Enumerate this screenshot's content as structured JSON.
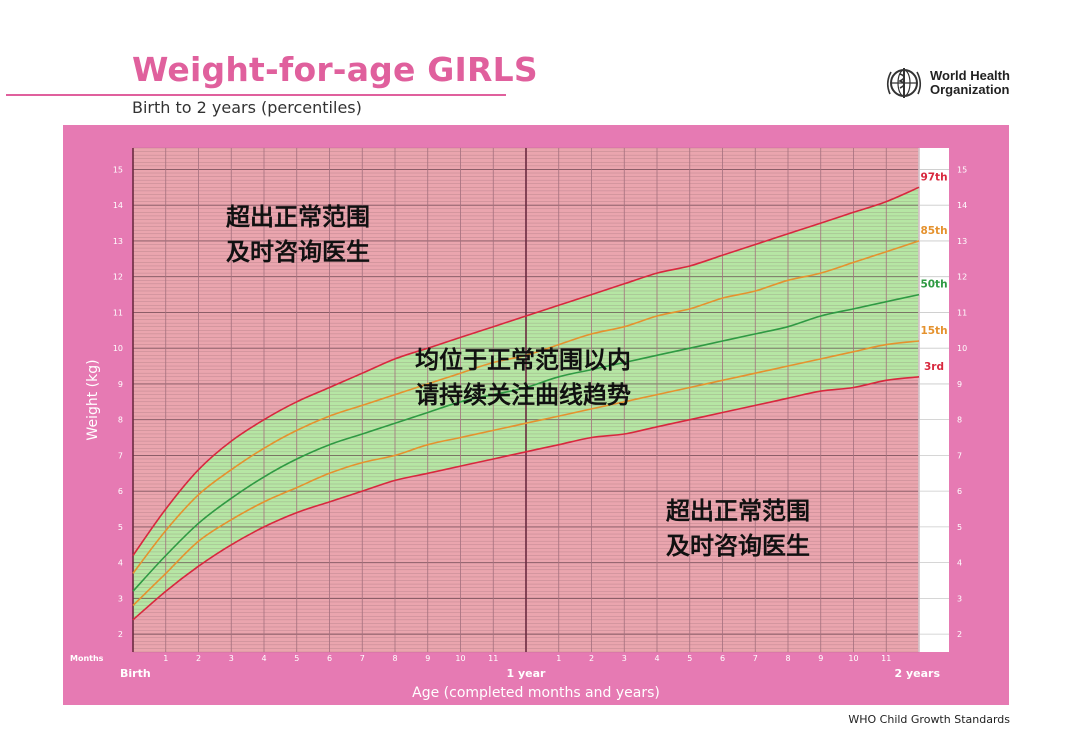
{
  "header": {
    "title": "Weight-for-age GIRLS",
    "subtitle": "Birth to 2 years (percentiles)",
    "org_line1": "World Health",
    "org_line2": "Organization",
    "footer": "WHO Child Growth Standards"
  },
  "overlays": {
    "top_left_line1": "超出正常范围",
    "top_left_line2": "及时咨询医生",
    "middle_line1": "均位于正常范围以内",
    "middle_line2": "请持续关注曲线趋势",
    "bottom_right_line1": "超出正常范围",
    "bottom_right_line2": "及时咨询医生"
  },
  "colors": {
    "frame": "#e67ab3",
    "out_of_range": "#eaa5ae",
    "normal_range": "#b6e6a4",
    "p97": "#d8283e",
    "p85": "#e5922e",
    "p50": "#2f9a43",
    "p15": "#e5922e",
    "p3": "#d8283e",
    "title": "#e0609d"
  },
  "chart_data": {
    "type": "line",
    "title": "Weight-for-age GIRLS",
    "subtitle": "Birth to 2 years (percentiles)",
    "xlabel": "Age (completed months and years)",
    "ylabel": "Weight (kg)",
    "x_axis_prefix": "Months",
    "x_tick_labels": [
      "Birth",
      "1",
      "2",
      "3",
      "4",
      "5",
      "6",
      "7",
      "8",
      "9",
      "10",
      "11",
      "1 year",
      "1",
      "2",
      "3",
      "4",
      "5",
      "6",
      "7",
      "8",
      "9",
      "10",
      "11",
      "2 years"
    ],
    "y_ticks": [
      2,
      3,
      4,
      5,
      6,
      7,
      8,
      9,
      10,
      11,
      12,
      13,
      14,
      15
    ],
    "xlim": [
      0,
      24
    ],
    "ylim": [
      1.5,
      15.6
    ],
    "grid": true,
    "x": [
      0,
      1,
      2,
      3,
      4,
      5,
      6,
      7,
      8,
      9,
      10,
      11,
      12,
      13,
      14,
      15,
      16,
      17,
      18,
      19,
      20,
      21,
      22,
      23,
      24
    ],
    "series": [
      {
        "name": "97th",
        "values": [
          4.2,
          5.5,
          6.6,
          7.4,
          8.0,
          8.5,
          8.9,
          9.3,
          9.7,
          10.0,
          10.3,
          10.6,
          10.9,
          11.2,
          11.5,
          11.8,
          12.1,
          12.3,
          12.6,
          12.9,
          13.2,
          13.5,
          13.8,
          14.1,
          14.5
        ]
      },
      {
        "name": "85th",
        "values": [
          3.7,
          4.9,
          5.9,
          6.6,
          7.2,
          7.7,
          8.1,
          8.4,
          8.7,
          9.0,
          9.3,
          9.6,
          9.8,
          10.1,
          10.4,
          10.6,
          10.9,
          11.1,
          11.4,
          11.6,
          11.9,
          12.1,
          12.4,
          12.7,
          13.0
        ]
      },
      {
        "name": "50th",
        "values": [
          3.2,
          4.2,
          5.1,
          5.8,
          6.4,
          6.9,
          7.3,
          7.6,
          7.9,
          8.2,
          8.5,
          8.7,
          8.9,
          9.2,
          9.4,
          9.6,
          9.8,
          10.0,
          10.2,
          10.4,
          10.6,
          10.9,
          11.1,
          11.3,
          11.5
        ]
      },
      {
        "name": "15th",
        "values": [
          2.8,
          3.7,
          4.6,
          5.2,
          5.7,
          6.1,
          6.5,
          6.8,
          7.0,
          7.3,
          7.5,
          7.7,
          7.9,
          8.1,
          8.3,
          8.5,
          8.7,
          8.9,
          9.1,
          9.3,
          9.5,
          9.7,
          9.9,
          10.1,
          10.2
        ]
      },
      {
        "name": "3rd",
        "values": [
          2.4,
          3.2,
          3.9,
          4.5,
          5.0,
          5.4,
          5.7,
          6.0,
          6.3,
          6.5,
          6.7,
          6.9,
          7.1,
          7.3,
          7.5,
          7.6,
          7.8,
          8.0,
          8.2,
          8.4,
          8.6,
          8.8,
          8.9,
          9.1,
          9.2
        ]
      }
    ]
  }
}
